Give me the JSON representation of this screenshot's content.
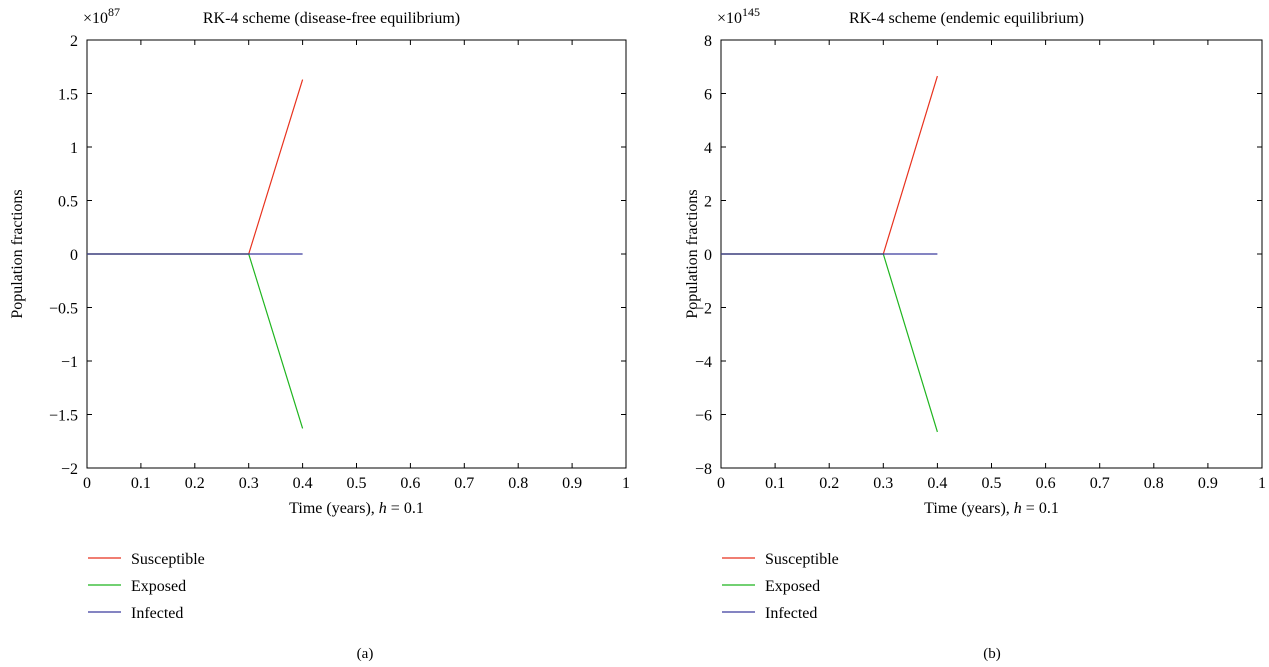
{
  "chart_data": [
    {
      "type": "line",
      "title": "RK-4 scheme (disease-free equilibrium)",
      "xlabel": "Time (years), h = 0.1",
      "xlabel_main": "Time (years), ",
      "xlabel_var": "h",
      "xlabel_tail": " = 0.1",
      "ylabel": "Population fractions",
      "y_exponent_base": "×10",
      "y_exponent_power": "87",
      "xlim": [
        0,
        1
      ],
      "ylim": [
        -2,
        2
      ],
      "xticks": [
        0,
        0.1,
        0.2,
        0.3,
        0.4,
        0.5,
        0.6,
        0.7,
        0.8,
        0.9,
        1
      ],
      "xtick_labels": [
        "0",
        "0.1",
        "0.2",
        "0.3",
        "0.4",
        "0.5",
        "0.6",
        "0.7",
        "0.8",
        "0.9",
        "1"
      ],
      "yticks": [
        -2,
        -1.5,
        -1,
        -0.5,
        0,
        0.5,
        1,
        1.5,
        2
      ],
      "ytick_labels": [
        "−2",
        "−1.5",
        "−1",
        "−0.5",
        "0",
        "0.5",
        "1",
        "1.5",
        "2"
      ],
      "grid": false,
      "legend_position": "bottom-left",
      "panel_label": "(a)",
      "series": [
        {
          "name": "Susceptible",
          "color": "#e8321e",
          "x": [
            0,
            0.1,
            0.2,
            0.3,
            0.4
          ],
          "y": [
            0,
            0,
            0,
            0,
            1.63
          ]
        },
        {
          "name": "Exposed",
          "color": "#1fb51f",
          "x": [
            0,
            0.1,
            0.2,
            0.3,
            0.4
          ],
          "y": [
            0,
            0,
            0,
            0,
            -1.63
          ]
        },
        {
          "name": "Infected",
          "color": "#3a3a9e",
          "x": [
            0,
            0.1,
            0.2,
            0.3,
            0.4
          ],
          "y": [
            0,
            0,
            0,
            0,
            0
          ]
        }
      ]
    },
    {
      "type": "line",
      "title": "RK-4 scheme (endemic equilibrium)",
      "xlabel": "Time (years), h = 0.1",
      "xlabel_main": "Time (years), ",
      "xlabel_var": "h",
      "xlabel_tail": " = 0.1",
      "ylabel": "Population fractions",
      "y_exponent_base": "×10",
      "y_exponent_power": "145",
      "xlim": [
        0,
        1
      ],
      "ylim": [
        -8,
        8
      ],
      "xticks": [
        0,
        0.1,
        0.2,
        0.3,
        0.4,
        0.5,
        0.6,
        0.7,
        0.8,
        0.9,
        1
      ],
      "xtick_labels": [
        "0",
        "0.1",
        "0.2",
        "0.3",
        "0.4",
        "0.5",
        "0.6",
        "0.7",
        "0.8",
        "0.9",
        "1"
      ],
      "yticks": [
        -8,
        -6,
        -4,
        -2,
        0,
        2,
        4,
        6,
        8
      ],
      "ytick_labels": [
        "−8",
        "−6",
        "−4",
        "−2",
        "0",
        "2",
        "4",
        "6",
        "8"
      ],
      "grid": false,
      "legend_position": "bottom-left",
      "panel_label": "(b)",
      "series": [
        {
          "name": "Susceptible",
          "color": "#e8321e",
          "x": [
            0,
            0.1,
            0.2,
            0.3,
            0.4
          ],
          "y": [
            0,
            0,
            0,
            0,
            6.65
          ]
        },
        {
          "name": "Exposed",
          "color": "#1fb51f",
          "x": [
            0,
            0.1,
            0.2,
            0.3,
            0.4
          ],
          "y": [
            0,
            0,
            0,
            0,
            -6.65
          ]
        },
        {
          "name": "Infected",
          "color": "#3a3a9e",
          "x": [
            0,
            0.1,
            0.2,
            0.3,
            0.4
          ],
          "y": [
            0,
            0,
            0,
            0,
            0
          ]
        }
      ]
    }
  ]
}
